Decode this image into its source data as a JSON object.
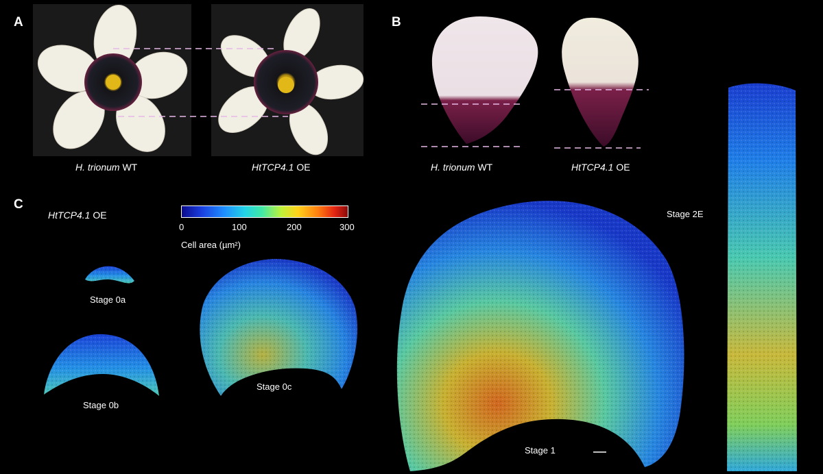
{
  "panels": {
    "a": {
      "letter": "A",
      "captions": [
        {
          "italic": "H. trionum",
          "plain": " WT"
        },
        {
          "italic": "HtTCP4.1",
          "plain": " OE"
        }
      ]
    },
    "b": {
      "letter": "B",
      "captions": [
        {
          "italic": "H. trionum",
          "plain": " WT"
        },
        {
          "italic": "HtTCP4.1",
          "plain": " OE"
        }
      ]
    },
    "c": {
      "letter": "C",
      "genotype": {
        "italic": "HtTCP4.1",
        "plain": " OE"
      },
      "colorbar": {
        "ticks": [
          "0",
          "100",
          "200",
          "300"
        ],
        "label": "Cell area (µm²)",
        "range": [
          0,
          300
        ]
      },
      "stages": [
        "Stage 0a",
        "Stage 0b",
        "Stage 0c",
        "Stage 1",
        "Stage 2E"
      ]
    }
  },
  "colors": {
    "background": "#000000",
    "petal_white": "#f3f1e6",
    "petal_base": "#4a0f2e",
    "dash_line": "#e8b8e8"
  }
}
